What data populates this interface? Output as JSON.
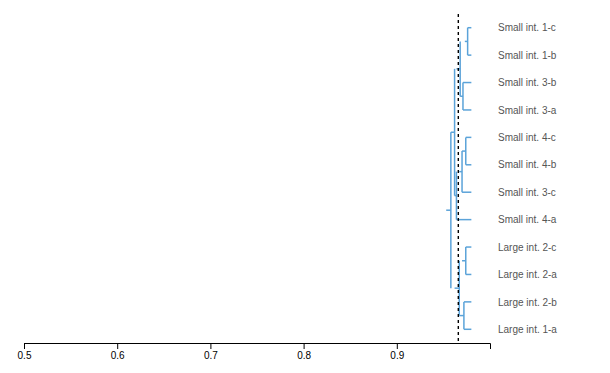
{
  "chart_data": {
    "type": "dendrogram",
    "categories": [
      "Small int. 1-c",
      "Small int. 1-b",
      "Small int. 3-b",
      "Small int. 3-a",
      "Small int. 4-c",
      "Small int. 4-b",
      "Small int. 3-c",
      "Small int. 4-a",
      "Large int. 2-c",
      "Large int. 2-a",
      "Large int. 2-b",
      "Large int. 1-a"
    ],
    "xlim": [
      0.5,
      1.0
    ],
    "xticks": [
      0.5,
      0.6,
      0.7,
      0.8,
      0.9
    ],
    "color": "#5ba3d9",
    "reference_line_x": 0.966,
    "segments": [
      {
        "type": "leaf_h",
        "y": 0,
        "x_left": 0.976,
        "x_right": 0.98
      },
      {
        "type": "leaf_h",
        "y": 1,
        "x_left": 0.976,
        "x_right": 0.98
      },
      {
        "type": "join_v",
        "y_top": 0,
        "y_bottom": 1,
        "x": 0.976
      },
      {
        "type": "join_h",
        "y": 0.5,
        "x_left": 0.973,
        "x_right": 0.976
      },
      {
        "type": "leaf_h",
        "y": 2,
        "x_left": 0.971,
        "x_right": 0.98
      },
      {
        "type": "leaf_h",
        "y": 3,
        "x_left": 0.971,
        "x_right": 0.98
      },
      {
        "type": "join_v",
        "y_top": 2,
        "y_bottom": 3,
        "x": 0.971
      },
      {
        "type": "join_h",
        "y": 2.5,
        "x_left": 0.968,
        "x_right": 0.971
      },
      {
        "type": "join_v",
        "y_top": 0.5,
        "y_bottom": 2.5,
        "x": 0.968
      },
      {
        "type": "join_h",
        "y": 1.5,
        "x_left": 0.964,
        "x_right": 0.968
      },
      {
        "type": "leaf_h",
        "y": 4,
        "x_left": 0.974,
        "x_right": 0.98
      },
      {
        "type": "leaf_h",
        "y": 5,
        "x_left": 0.974,
        "x_right": 0.98
      },
      {
        "type": "join_v",
        "y_top": 4,
        "y_bottom": 5,
        "x": 0.974
      },
      {
        "type": "join_h",
        "y": 4.5,
        "x_left": 0.97,
        "x_right": 0.974
      },
      {
        "type": "leaf_h",
        "y": 6,
        "x_left": 0.97,
        "x_right": 0.98
      },
      {
        "type": "join_v",
        "y_top": 4.5,
        "y_bottom": 6,
        "x": 0.97
      },
      {
        "type": "join_h",
        "y": 5.25,
        "x_left": 0.967,
        "x_right": 0.97
      },
      {
        "type": "leaf_h",
        "y": 7,
        "x_left": 0.964,
        "x_right": 0.98
      },
      {
        "type": "join_v",
        "y_top": 5.25,
        "y_bottom": 7,
        "x": 0.964
      },
      {
        "type": "join_h",
        "y": 6.125,
        "x_left": 0.962,
        "x_right": 0.964
      },
      {
        "type": "join_v",
        "y_top": 1.5,
        "y_bottom": 6.125,
        "x": 0.962
      },
      {
        "type": "join_h",
        "y": 3.8125,
        "x_left": 0.958,
        "x_right": 0.962
      },
      {
        "type": "leaf_h",
        "y": 8,
        "x_left": 0.974,
        "x_right": 0.98
      },
      {
        "type": "leaf_h",
        "y": 9,
        "x_left": 0.974,
        "x_right": 0.98
      },
      {
        "type": "join_v",
        "y_top": 8,
        "y_bottom": 9,
        "x": 0.974
      },
      {
        "type": "join_h",
        "y": 8.5,
        "x_left": 0.97,
        "x_right": 0.974
      },
      {
        "type": "leaf_h",
        "y": 10,
        "x_left": 0.972,
        "x_right": 0.98
      },
      {
        "type": "leaf_h",
        "y": 11,
        "x_left": 0.972,
        "x_right": 0.98
      },
      {
        "type": "join_v",
        "y_top": 10,
        "y_bottom": 11,
        "x": 0.972
      },
      {
        "type": "join_h",
        "y": 10.5,
        "x_left": 0.967,
        "x_right": 0.972
      },
      {
        "type": "join_v",
        "y_top": 8.5,
        "y_bottom": 10.5,
        "x": 0.967
      },
      {
        "type": "join_h",
        "y": 9.5,
        "x_left": 0.962,
        "x_right": 0.967
      },
      {
        "type": "join_v",
        "y_top": 3.8125,
        "y_bottom": 9.5,
        "x": 0.958
      },
      {
        "type": "join_h",
        "y": 6.65625,
        "x_left": 0.953,
        "x_right": 0.958
      }
    ]
  }
}
